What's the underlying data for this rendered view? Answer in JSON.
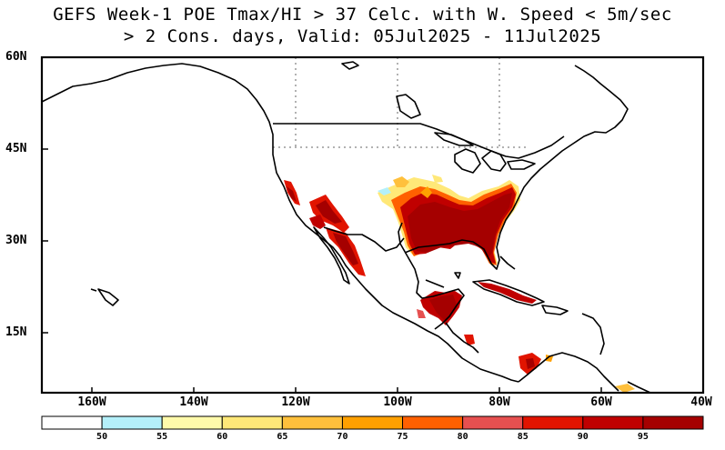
{
  "title": {
    "line1": "GEFS Week-1 POE Tmax/HI > 37 Celc. with W. Speed < 5m/sec",
    "line2": "> 2 Cons. days, Valid: 05Jul2025 - 11Jul2025"
  },
  "lat_labels": [
    "60N",
    "45N",
    "30N",
    "15N"
  ],
  "lon_labels": [
    "160W",
    "140W",
    "120W",
    "100W",
    "80W",
    "60W",
    "40W"
  ],
  "colorbar": {
    "labels": [
      "50",
      "55",
      "60",
      "65",
      "70",
      "75",
      "80",
      "85",
      "90",
      "95"
    ],
    "colors": [
      "#ffffff",
      "#b4f0fa",
      "#fffaaa",
      "#ffe878",
      "#ffc03c",
      "#ffa000",
      "#ff6000",
      "#e65050",
      "#e11400",
      "#c00000",
      "#a50000"
    ]
  },
  "colors": {
    "land_outline": "#000000",
    "grid": "#999999"
  }
}
